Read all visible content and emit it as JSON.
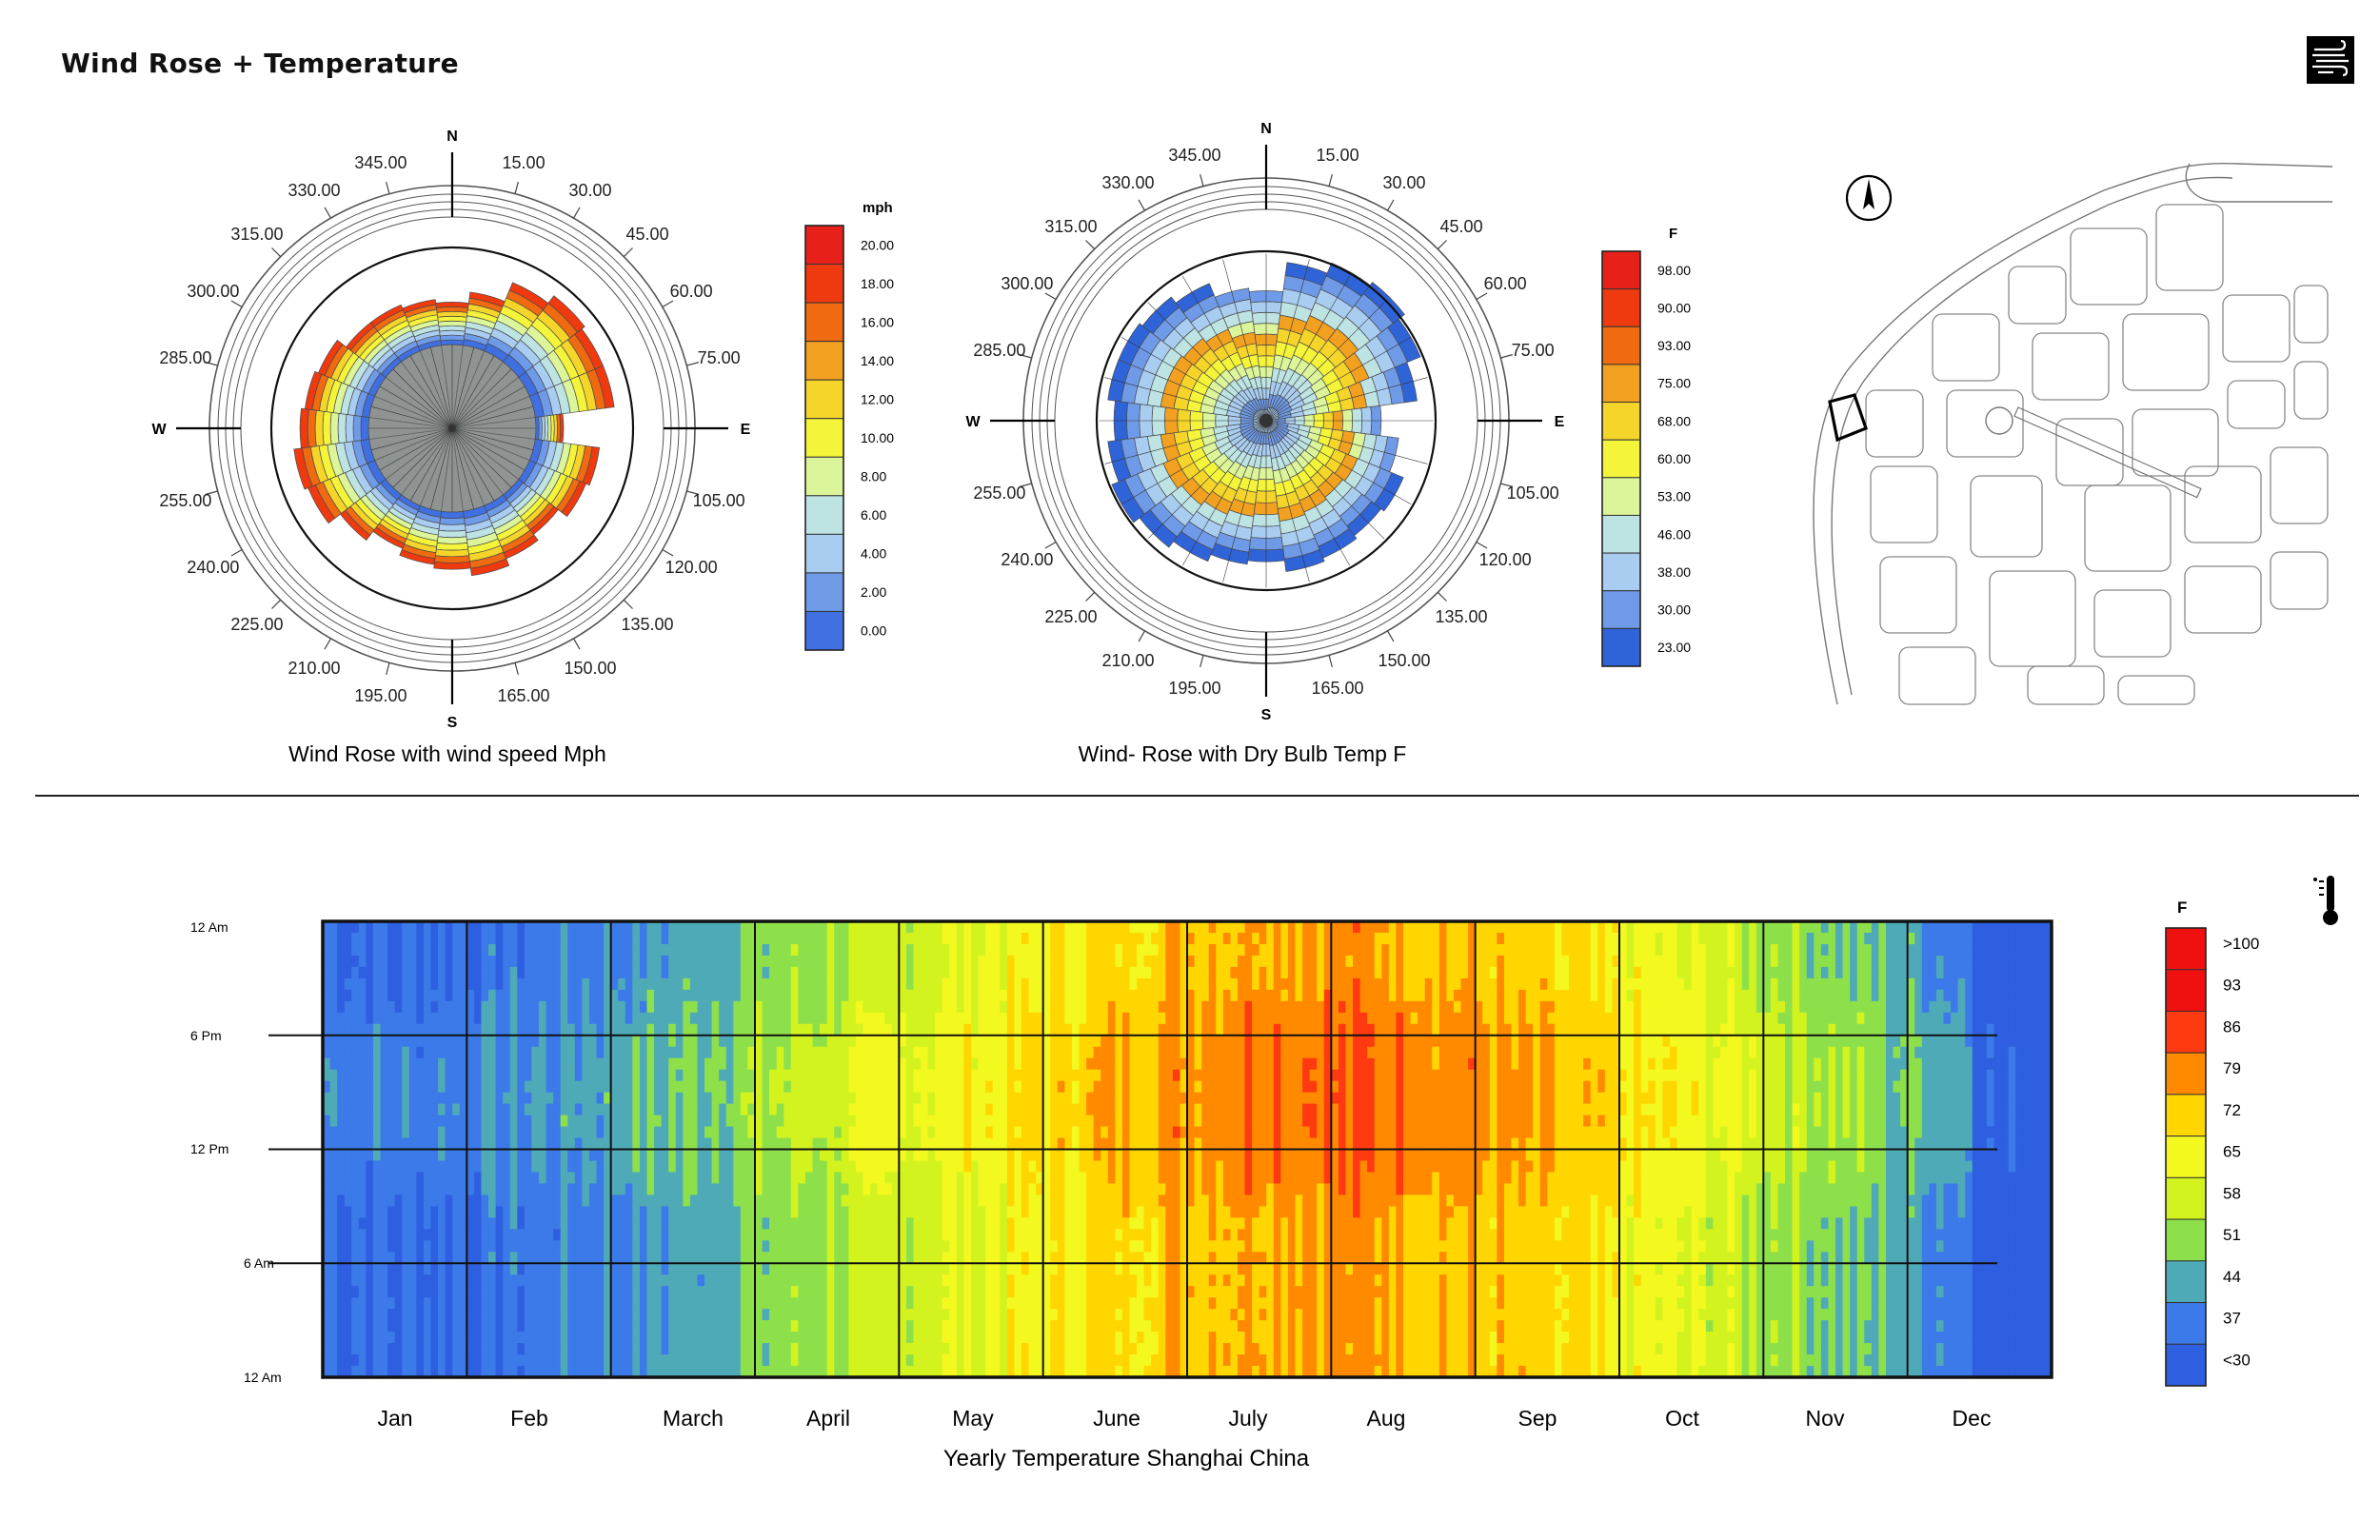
{
  "title": "Wind Rose + Temperature",
  "colors": {
    "speed": [
      "#3f6fe0",
      "#6f9ae8",
      "#a9cdf0",
      "#bde3e3",
      "#dcf59a",
      "#f4f43a",
      "#f5d52a",
      "#f2a020",
      "#ef6a10",
      "#ef3a10",
      "#e8201a"
    ],
    "temp": [
      "#2f63d8",
      "#6f9ae8",
      "#a9cdf0",
      "#bde3e3",
      "#dcf59a",
      "#f4f43a",
      "#f5d52a",
      "#f2a020",
      "#ef6a10",
      "#ef3a10",
      "#e8201a"
    ],
    "heat": [
      "#2e5fe0",
      "#3b7ae8",
      "#4faab8",
      "#8ee04a",
      "#d3f31f",
      "#f3f81f",
      "#ffd600",
      "#ff8a00",
      "#ff3a10",
      "#f01010"
    ]
  },
  "rose1": {
    "caption": "Wind Rose with wind speed Mph",
    "compass": {
      "n": "N",
      "e": "E",
      "s": "S",
      "w": "W"
    },
    "angle_labels": [
      "15.00",
      "30.00",
      "45.00",
      "60.00",
      "75.00",
      "105.00",
      "120.00",
      "135.00",
      "150.00",
      "165.00",
      "195.00",
      "210.00",
      "225.00",
      "240.00",
      "255.00",
      "285.00",
      "300.00",
      "315.00",
      "330.00",
      "345.00"
    ],
    "legend_title": "mph",
    "legend_labels": [
      "20.00",
      "18.00",
      "16.00",
      "14.00",
      "12.00",
      "10.00",
      "8.00",
      "6.00",
      "4.00",
      "2.00",
      "0.00"
    ]
  },
  "rose2": {
    "caption": "Wind- Rose with Dry Bulb Temp F",
    "compass": {
      "n": "N",
      "e": "E",
      "s": "S",
      "w": "W"
    },
    "angle_labels": [
      "15.00",
      "30.00",
      "45.00",
      "60.00",
      "75.00",
      "105.00",
      "120.00",
      "135.00",
      "150.00",
      "165.00",
      "195.00",
      "210.00",
      "225.00",
      "240.00",
      "255.00",
      "285.00",
      "300.00",
      "315.00",
      "330.00",
      "345.00"
    ],
    "legend_title": "F",
    "legend_labels": [
      "98.00",
      "90.00",
      "93.00",
      "75.00",
      "68.00",
      "60.00",
      "53.00",
      "46.00",
      "38.00",
      "30.00",
      "23.00"
    ]
  },
  "chart_data": [
    {
      "type": "bar",
      "subtype": "polar-stacked",
      "title": "Wind Rose with wind speed Mph",
      "directions_deg": [
        0,
        15,
        30,
        45,
        60,
        75,
        90,
        105,
        120,
        135,
        150,
        165,
        180,
        195,
        210,
        225,
        240,
        255,
        270,
        285,
        300,
        315,
        330,
        345
      ],
      "relative_extent": [
        0.68,
        0.74,
        0.85,
        0.9,
        0.88,
        0.88,
        0.6,
        0.8,
        0.78,
        0.72,
        0.76,
        0.8,
        0.76,
        0.74,
        0.7,
        0.76,
        0.84,
        0.86,
        0.82,
        0.8,
        0.78,
        0.72,
        0.72,
        0.7
      ],
      "legend": {
        "title": "mph",
        "levels": [
          20,
          18,
          16,
          14,
          12,
          10,
          8,
          6,
          4,
          2,
          0
        ]
      }
    },
    {
      "type": "bar",
      "subtype": "polar-stacked",
      "title": "Wind- Rose with Dry Bulb Temp F",
      "directions_deg": [
        0,
        15,
        30,
        45,
        60,
        75,
        90,
        105,
        120,
        135,
        150,
        165,
        180,
        195,
        210,
        225,
        240,
        255,
        270,
        285,
        300,
        315,
        330,
        345
      ],
      "relative_extent": [
        0.7,
        0.86,
        0.92,
        0.94,
        0.9,
        0.82,
        0.62,
        0.72,
        0.8,
        0.78,
        0.8,
        0.82,
        0.76,
        0.78,
        0.82,
        0.86,
        0.9,
        0.86,
        0.82,
        0.86,
        0.86,
        0.84,
        0.8,
        0.72
      ],
      "legend": {
        "title": "F",
        "levels": [
          98,
          90,
          93,
          75,
          68,
          60,
          53,
          46,
          38,
          30,
          23
        ]
      }
    },
    {
      "type": "heatmap",
      "title": "Yearly Temperature Shanghai China",
      "x_labels": [
        "Jan",
        "Feb",
        "March",
        "April",
        "May",
        "June",
        "July",
        "Aug",
        "Sep",
        "Oct",
        "Nov",
        "Dec"
      ],
      "y_labels": [
        "12 Am",
        "6 Pm",
        "12 Pm",
        "6 Am",
        "12 Am"
      ],
      "legend": {
        "title": "F",
        "levels": [
          ">100",
          "93",
          "86",
          "79",
          "72",
          "65",
          "58",
          "51",
          "44",
          "37",
          "<30"
        ]
      },
      "monthly_mean_F_approx": [
        40,
        43,
        50,
        60,
        68,
        77,
        85,
        84,
        76,
        67,
        56,
        44
      ]
    }
  ],
  "heatmap": {
    "caption": "Yearly Temperature Shanghai China",
    "months": [
      "Jan",
      "Feb",
      "March",
      "April",
      "May",
      "June",
      "July",
      "Aug",
      "Sep",
      "Oct",
      "Nov",
      "Dec"
    ],
    "hours": [
      "12 Am",
      "6 Pm",
      "12 Pm",
      "6 Am",
      "12 Am"
    ],
    "legend_title": "F",
    "legend_labels": [
      ">100",
      "93",
      "86",
      "79",
      "72",
      "65",
      "58",
      "51",
      "44",
      "37",
      "<30"
    ]
  },
  "icons": {
    "wind": "wind-icon",
    "thermometer": "thermometer-icon",
    "north": "north-arrow-icon"
  }
}
